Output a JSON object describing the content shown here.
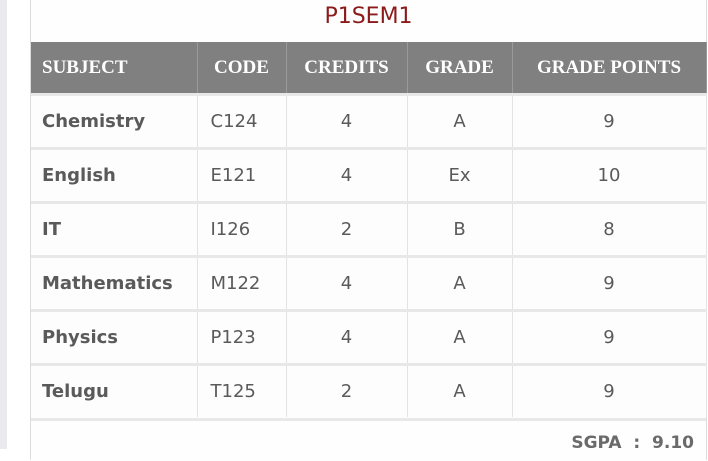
{
  "title": "P1SEM1",
  "table": {
    "header": [
      "SUBJECT",
      "CODE",
      "CREDITS",
      "GRADE",
      "GRADE POINTS"
    ],
    "rows": [
      [
        "Chemistry",
        "C124",
        4,
        "A",
        9
      ],
      [
        "English",
        "E121",
        4,
        "Ex",
        10
      ],
      [
        "IT",
        "I126",
        2,
        "B",
        8
      ],
      [
        "Mathematics",
        "M122",
        4,
        "A",
        9
      ],
      [
        "Physics",
        "P123",
        4,
        "A",
        9
      ],
      [
        "Telugu",
        "T125",
        2,
        "A",
        9
      ]
    ]
  },
  "footer": "SGPA  :  9.10"
}
